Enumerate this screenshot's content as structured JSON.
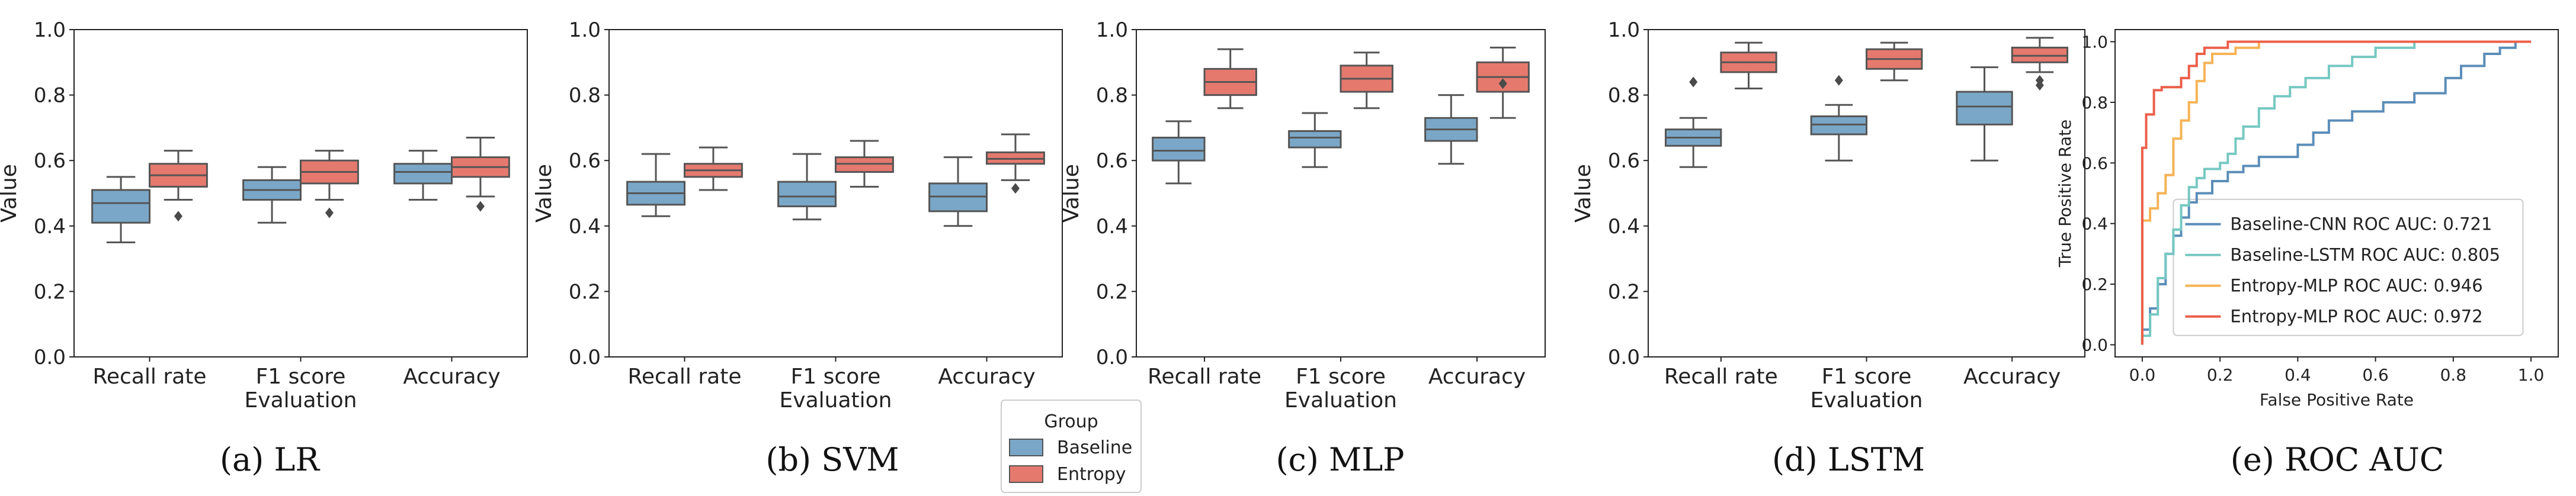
{
  "chart_data": [
    {
      "type": "box",
      "caption": "(a) LR",
      "xlabel": "Evaluation",
      "ylabel": "Value",
      "ylim": [
        0,
        1.0
      ],
      "yticks": [
        "0.0",
        "0.2",
        "0.4",
        "0.6",
        "0.8",
        "1.0"
      ],
      "categories": [
        "Recall rate",
        "F1 score",
        "Accuracy"
      ],
      "series": [
        {
          "name": "Baseline",
          "boxes": [
            {
              "whisker_low": 0.35,
              "q1": 0.41,
              "median": 0.47,
              "q3": 0.51,
              "whisker_high": 0.55,
              "outliers": []
            },
            {
              "whisker_low": 0.41,
              "q1": 0.48,
              "median": 0.51,
              "q3": 0.54,
              "whisker_high": 0.58,
              "outliers": []
            },
            {
              "whisker_low": 0.48,
              "q1": 0.53,
              "median": 0.565,
              "q3": 0.59,
              "whisker_high": 0.63,
              "outliers": []
            }
          ]
        },
        {
          "name": "Entropy",
          "boxes": [
            {
              "whisker_low": 0.48,
              "q1": 0.52,
              "median": 0.555,
              "q3": 0.59,
              "whisker_high": 0.63,
              "outliers": [
                0.43
              ]
            },
            {
              "whisker_low": 0.48,
              "q1": 0.53,
              "median": 0.565,
              "q3": 0.6,
              "whisker_high": 0.63,
              "outliers": [
                0.44
              ]
            },
            {
              "whisker_low": 0.49,
              "q1": 0.55,
              "median": 0.58,
              "q3": 0.61,
              "whisker_high": 0.67,
              "outliers": [
                0.46
              ]
            }
          ]
        }
      ]
    },
    {
      "type": "box",
      "caption": "(b) SVM",
      "xlabel": "Evaluation",
      "ylabel": "Value",
      "ylim": [
        0,
        1.0
      ],
      "yticks": [
        "0.0",
        "0.2",
        "0.4",
        "0.6",
        "0.8",
        "1.0"
      ],
      "categories": [
        "Recall rate",
        "F1 score",
        "Accuracy"
      ],
      "series": [
        {
          "name": "Baseline",
          "boxes": [
            {
              "whisker_low": 0.43,
              "q1": 0.465,
              "median": 0.5,
              "q3": 0.535,
              "whisker_high": 0.62,
              "outliers": []
            },
            {
              "whisker_low": 0.42,
              "q1": 0.46,
              "median": 0.49,
              "q3": 0.535,
              "whisker_high": 0.62,
              "outliers": []
            },
            {
              "whisker_low": 0.4,
              "q1": 0.445,
              "median": 0.49,
              "q3": 0.53,
              "whisker_high": 0.61,
              "outliers": []
            }
          ]
        },
        {
          "name": "Entropy",
          "boxes": [
            {
              "whisker_low": 0.51,
              "q1": 0.55,
              "median": 0.57,
              "q3": 0.59,
              "whisker_high": 0.64,
              "outliers": []
            },
            {
              "whisker_low": 0.52,
              "q1": 0.565,
              "median": 0.59,
              "q3": 0.61,
              "whisker_high": 0.66,
              "outliers": []
            },
            {
              "whisker_low": 0.54,
              "q1": 0.59,
              "median": 0.605,
              "q3": 0.625,
              "whisker_high": 0.68,
              "outliers": [
                0.515
              ]
            }
          ]
        }
      ]
    },
    {
      "type": "box",
      "caption": "(c) MLP",
      "xlabel": "Evaluation",
      "ylabel": "Value",
      "ylim": [
        0,
        1.0
      ],
      "yticks": [
        "0.0",
        "0.2",
        "0.4",
        "0.6",
        "0.8",
        "1.0"
      ],
      "categories": [
        "Recall rate",
        "F1 score",
        "Accuracy"
      ],
      "series": [
        {
          "name": "Baseline",
          "boxes": [
            {
              "whisker_low": 0.53,
              "q1": 0.6,
              "median": 0.63,
              "q3": 0.67,
              "whisker_high": 0.72,
              "outliers": []
            },
            {
              "whisker_low": 0.58,
              "q1": 0.64,
              "median": 0.67,
              "q3": 0.69,
              "whisker_high": 0.745,
              "outliers": []
            },
            {
              "whisker_low": 0.59,
              "q1": 0.66,
              "median": 0.695,
              "q3": 0.73,
              "whisker_high": 0.8,
              "outliers": []
            }
          ]
        },
        {
          "name": "Entropy",
          "boxes": [
            {
              "whisker_low": 0.76,
              "q1": 0.8,
              "median": 0.84,
              "q3": 0.88,
              "whisker_high": 0.94,
              "outliers": []
            },
            {
              "whisker_low": 0.76,
              "q1": 0.81,
              "median": 0.85,
              "q3": 0.89,
              "whisker_high": 0.93,
              "outliers": []
            },
            {
              "whisker_low": 0.73,
              "q1": 0.81,
              "median": 0.855,
              "q3": 0.9,
              "whisker_high": 0.945,
              "outliers": [
                0.835
              ]
            }
          ]
        }
      ]
    },
    {
      "type": "box",
      "caption": "(d) LSTM",
      "xlabel": "Evaluation",
      "ylabel": "Value",
      "ylim": [
        0,
        1.0
      ],
      "yticks": [
        "0.0",
        "0.2",
        "0.4",
        "0.6",
        "0.8",
        "1.0"
      ],
      "categories": [
        "Recall rate",
        "F1 score",
        "Accuracy"
      ],
      "series": [
        {
          "name": "Baseline",
          "boxes": [
            {
              "whisker_low": 0.58,
              "q1": 0.645,
              "median": 0.67,
              "q3": 0.695,
              "whisker_high": 0.73,
              "outliers": [
                0.84
              ]
            },
            {
              "whisker_low": 0.6,
              "q1": 0.68,
              "median": 0.71,
              "q3": 0.735,
              "whisker_high": 0.77,
              "outliers": [
                0.845
              ]
            },
            {
              "whisker_low": 0.6,
              "q1": 0.71,
              "median": 0.765,
              "q3": 0.81,
              "whisker_high": 0.885,
              "outliers": []
            }
          ]
        },
        {
          "name": "Entropy",
          "boxes": [
            {
              "whisker_low": 0.82,
              "q1": 0.87,
              "median": 0.9,
              "q3": 0.93,
              "whisker_high": 0.96,
              "outliers": []
            },
            {
              "whisker_low": 0.845,
              "q1": 0.88,
              "median": 0.91,
              "q3": 0.94,
              "whisker_high": 0.96,
              "outliers": []
            },
            {
              "whisker_low": 0.87,
              "q1": 0.9,
              "median": 0.92,
              "q3": 0.945,
              "whisker_high": 0.975,
              "outliers": [
                0.83,
                0.845
              ]
            }
          ]
        }
      ]
    },
    {
      "type": "line",
      "caption": "(e) ROC AUC",
      "xlabel": "False Positive Rate",
      "ylabel": "True Positive Rate",
      "xlim": [
        -0.07,
        1.07
      ],
      "ylim": [
        -0.04,
        1.04
      ],
      "xticks": [
        "0.0",
        "0.2",
        "0.4",
        "0.6",
        "0.8",
        "1.0"
      ],
      "yticks": [
        "0.0",
        "0.2",
        "0.4",
        "0.6",
        "0.8",
        "1.0"
      ],
      "series": [
        {
          "name": "Baseline-CNN ROC AUC: 0.721",
          "color": "#5b8db8",
          "points": [
            [
              0,
              0
            ],
            [
              0,
              0.05
            ],
            [
              0.02,
              0.05
            ],
            [
              0.02,
              0.12
            ],
            [
              0.04,
              0.12
            ],
            [
              0.04,
              0.2
            ],
            [
              0.06,
              0.2
            ],
            [
              0.06,
              0.3
            ],
            [
              0.08,
              0.3
            ],
            [
              0.08,
              0.36
            ],
            [
              0.1,
              0.36
            ],
            [
              0.1,
              0.42
            ],
            [
              0.12,
              0.42
            ],
            [
              0.12,
              0.47
            ],
            [
              0.14,
              0.47
            ],
            [
              0.14,
              0.5
            ],
            [
              0.18,
              0.5
            ],
            [
              0.18,
              0.54
            ],
            [
              0.22,
              0.54
            ],
            [
              0.22,
              0.57
            ],
            [
              0.26,
              0.57
            ],
            [
              0.26,
              0.59
            ],
            [
              0.3,
              0.59
            ],
            [
              0.3,
              0.62
            ],
            [
              0.4,
              0.62
            ],
            [
              0.4,
              0.66
            ],
            [
              0.44,
              0.66
            ],
            [
              0.44,
              0.7
            ],
            [
              0.48,
              0.7
            ],
            [
              0.48,
              0.74
            ],
            [
              0.54,
              0.74
            ],
            [
              0.54,
              0.77
            ],
            [
              0.62,
              0.77
            ],
            [
              0.62,
              0.8
            ],
            [
              0.7,
              0.8
            ],
            [
              0.7,
              0.83
            ],
            [
              0.78,
              0.83
            ],
            [
              0.78,
              0.88
            ],
            [
              0.82,
              0.88
            ],
            [
              0.82,
              0.92
            ],
            [
              0.88,
              0.92
            ],
            [
              0.88,
              0.96
            ],
            [
              0.92,
              0.96
            ],
            [
              0.92,
              0.98
            ],
            [
              0.96,
              0.98
            ],
            [
              0.96,
              1.0
            ],
            [
              1.0,
              1.0
            ]
          ]
        },
        {
          "name": "Baseline-LSTM ROC AUC: 0.805",
          "color": "#76c8c2",
          "points": [
            [
              0,
              0
            ],
            [
              0,
              0.03
            ],
            [
              0.02,
              0.03
            ],
            [
              0.02,
              0.1
            ],
            [
              0.04,
              0.1
            ],
            [
              0.04,
              0.22
            ],
            [
              0.06,
              0.22
            ],
            [
              0.06,
              0.3
            ],
            [
              0.08,
              0.3
            ],
            [
              0.08,
              0.38
            ],
            [
              0.1,
              0.38
            ],
            [
              0.1,
              0.46
            ],
            [
              0.12,
              0.46
            ],
            [
              0.12,
              0.52
            ],
            [
              0.14,
              0.52
            ],
            [
              0.14,
              0.55
            ],
            [
              0.16,
              0.55
            ],
            [
              0.16,
              0.58
            ],
            [
              0.2,
              0.58
            ],
            [
              0.2,
              0.6
            ],
            [
              0.22,
              0.6
            ],
            [
              0.22,
              0.63
            ],
            [
              0.24,
              0.63
            ],
            [
              0.24,
              0.68
            ],
            [
              0.26,
              0.68
            ],
            [
              0.26,
              0.72
            ],
            [
              0.3,
              0.72
            ],
            [
              0.3,
              0.78
            ],
            [
              0.34,
              0.78
            ],
            [
              0.34,
              0.82
            ],
            [
              0.38,
              0.82
            ],
            [
              0.38,
              0.85
            ],
            [
              0.42,
              0.85
            ],
            [
              0.42,
              0.88
            ],
            [
              0.48,
              0.88
            ],
            [
              0.48,
              0.92
            ],
            [
              0.54,
              0.92
            ],
            [
              0.54,
              0.95
            ],
            [
              0.6,
              0.95
            ],
            [
              0.6,
              0.98
            ],
            [
              0.7,
              0.98
            ],
            [
              0.7,
              1.0
            ],
            [
              1.0,
              1.0
            ]
          ]
        },
        {
          "name": "Entropy-MLP ROC AUC: 0.946",
          "color": "#f6b355",
          "points": [
            [
              0,
              0
            ],
            [
              0,
              0.41
            ],
            [
              0.02,
              0.41
            ],
            [
              0.02,
              0.45
            ],
            [
              0.04,
              0.45
            ],
            [
              0.04,
              0.5
            ],
            [
              0.06,
              0.5
            ],
            [
              0.06,
              0.56
            ],
            [
              0.08,
              0.56
            ],
            [
              0.08,
              0.68
            ],
            [
              0.1,
              0.68
            ],
            [
              0.1,
              0.74
            ],
            [
              0.12,
              0.74
            ],
            [
              0.12,
              0.8
            ],
            [
              0.14,
              0.8
            ],
            [
              0.14,
              0.87
            ],
            [
              0.16,
              0.87
            ],
            [
              0.16,
              0.93
            ],
            [
              0.18,
              0.93
            ],
            [
              0.18,
              0.96
            ],
            [
              0.24,
              0.96
            ],
            [
              0.24,
              0.98
            ],
            [
              0.3,
              0.98
            ],
            [
              0.3,
              1.0
            ],
            [
              1.0,
              1.0
            ]
          ]
        },
        {
          "name": "Entropy-MLP ROC AUC: 0.972",
          "color": "#ec5f4a",
          "points": [
            [
              0,
              0
            ],
            [
              0,
              0.65
            ],
            [
              0.01,
              0.65
            ],
            [
              0.01,
              0.76
            ],
            [
              0.03,
              0.76
            ],
            [
              0.03,
              0.84
            ],
            [
              0.05,
              0.84
            ],
            [
              0.05,
              0.85
            ],
            [
              0.1,
              0.85
            ],
            [
              0.1,
              0.88
            ],
            [
              0.12,
              0.88
            ],
            [
              0.12,
              0.92
            ],
            [
              0.14,
              0.92
            ],
            [
              0.14,
              0.96
            ],
            [
              0.16,
              0.96
            ],
            [
              0.16,
              0.98
            ],
            [
              0.22,
              0.98
            ],
            [
              0.22,
              1.0
            ],
            [
              1.0,
              1.0
            ]
          ]
        }
      ]
    }
  ],
  "legend": {
    "title": "Group",
    "items": [
      {
        "name": "Baseline",
        "color": "#7aa7c7"
      },
      {
        "name": "Entropy",
        "color": "#e5796e"
      }
    ]
  },
  "colors": {
    "baseline": "#7aa7c7",
    "entropy": "#e5796e",
    "edge": "#555555"
  }
}
